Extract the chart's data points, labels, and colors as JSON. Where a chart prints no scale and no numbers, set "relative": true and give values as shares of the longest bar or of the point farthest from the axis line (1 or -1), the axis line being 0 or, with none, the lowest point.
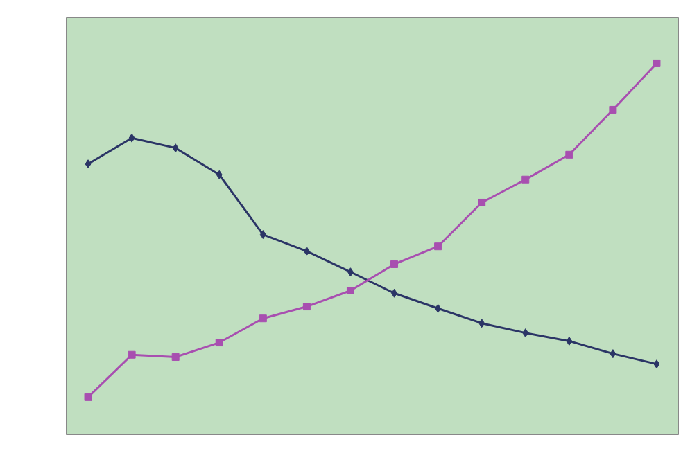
{
  "chart_data": {
    "type": "line",
    "relative": true,
    "categories": [
      null,
      null,
      null,
      null,
      null,
      null,
      null,
      null,
      null,
      null,
      null,
      null,
      null,
      null
    ],
    "series": [
      {
        "color": "#2b3566",
        "marker": "diamond",
        "values": [
          0.729,
          0.799,
          0.772,
          0.7,
          0.539,
          0.494,
          0.438,
          0.381,
          0.34,
          0.3,
          0.274,
          0.252,
          0.218,
          0.19
        ]
      },
      {
        "color": "#a84fb0",
        "marker": "square",
        "values": [
          0.101,
          0.215,
          0.209,
          0.248,
          0.313,
          0.345,
          0.388,
          0.459,
          0.507,
          0.625,
          0.687,
          0.754,
          0.875,
          1.0
        ]
      }
    ],
    "grid": false
  }
}
